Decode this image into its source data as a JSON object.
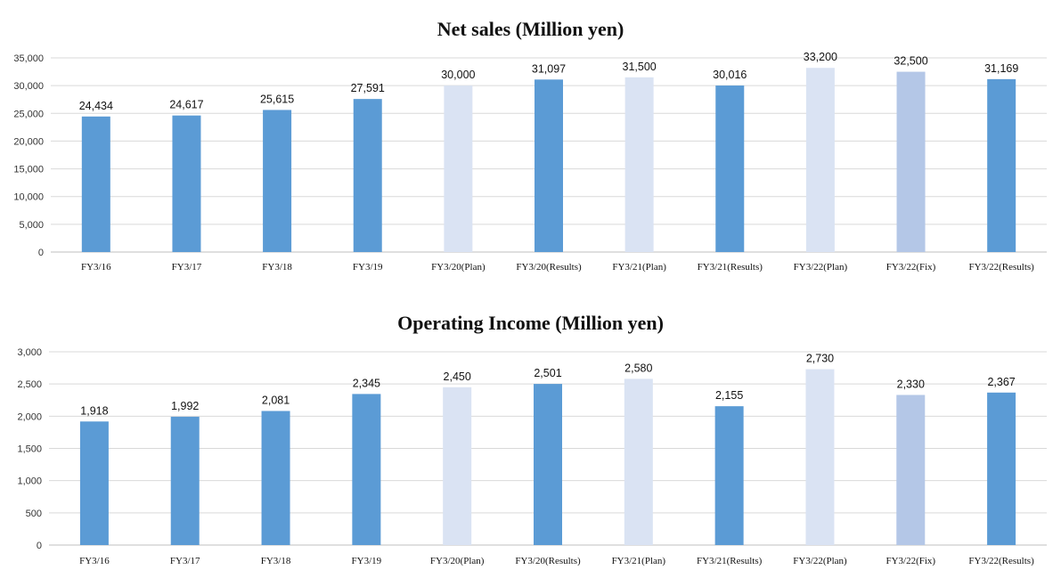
{
  "colors": {
    "actual": "#5b9bd5",
    "plan": "#dae3f3",
    "fix": "#b4c7e7",
    "grid": "#d9d9d9"
  },
  "chart_data": [
    {
      "type": "bar",
      "title": "Net sales (Million yen)",
      "xlabel": "",
      "ylabel": "",
      "categories": [
        "FY3/16",
        "FY3/17",
        "FY3/18",
        "FY3/19",
        "FY3/20(Plan)",
        "FY3/20(Results)",
        "FY3/21(Plan)",
        "FY3/21(Results)",
        "FY3/22(Plan)",
        "FY3/22(Fix)",
        "FY3/22(Results)"
      ],
      "values": [
        24434,
        24617,
        25615,
        27591,
        30000,
        31097,
        31500,
        30016,
        33200,
        32500,
        31169
      ],
      "value_labels": [
        "24,434",
        "24,617",
        "25,615",
        "27,591",
        "30,000",
        "31,097",
        "31,500",
        "30,016",
        "33,200",
        "32,500",
        "31,169"
      ],
      "bar_kinds": [
        "actual",
        "actual",
        "actual",
        "actual",
        "plan",
        "actual",
        "plan",
        "actual",
        "plan",
        "fix",
        "actual"
      ],
      "ylim": [
        0,
        35000
      ],
      "yticks": [
        0,
        5000,
        10000,
        15000,
        20000,
        25000,
        30000,
        35000
      ],
      "ytick_labels": [
        "0",
        "5,000",
        "10,000",
        "15,000",
        "20,000",
        "25,000",
        "30,000",
        "35,000"
      ],
      "grid": true,
      "legend": "none"
    },
    {
      "type": "bar",
      "title": "Operating Income (Million yen)",
      "xlabel": "",
      "ylabel": "",
      "categories": [
        "FY3/16",
        "FY3/17",
        "FY3/18",
        "FY3/19",
        "FY3/20(Plan)",
        "FY3/20(Results)",
        "FY3/21(Plan)",
        "FY3/21(Results)",
        "FY3/22(Plan)",
        "FY3/22(Fix)",
        "FY3/22(Results)"
      ],
      "values": [
        1918,
        1992,
        2081,
        2345,
        2450,
        2501,
        2580,
        2155,
        2730,
        2330,
        2367
      ],
      "value_labels": [
        "1,918",
        "1,992",
        "2,081",
        "2,345",
        "2,450",
        "2,501",
        "2,580",
        "2,155",
        "2,730",
        "2,330",
        "2,367"
      ],
      "bar_kinds": [
        "actual",
        "actual",
        "actual",
        "actual",
        "plan",
        "actual",
        "plan",
        "actual",
        "plan",
        "fix",
        "actual"
      ],
      "ylim": [
        0,
        3000
      ],
      "yticks": [
        0,
        500,
        1000,
        1500,
        2000,
        2500,
        3000
      ],
      "ytick_labels": [
        "0",
        "500",
        "1,000",
        "1,500",
        "2,000",
        "2,500",
        "3,000"
      ],
      "grid": true,
      "legend": "none"
    }
  ]
}
